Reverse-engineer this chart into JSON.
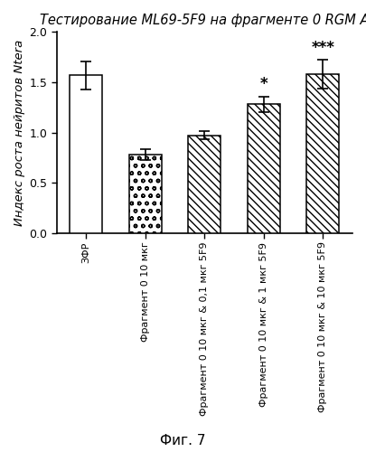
{
  "title": "Тестирование ML69-5F9 на фрагменте 0 RGM A",
  "ylabel": "Индекс роста нейритов Ntera",
  "fig_label": "Фиг. 7",
  "categories": [
    "ЗФР",
    "Фрагмент 0 10 мкг",
    "Фрагмент 0 10 мкг & 0,1 мкг 5F9",
    "Фрагмент 0 10 мкг & 1 мкг 5F9",
    "Фрагмент 0 10 мкг & 10 мкг 5F9"
  ],
  "values": [
    1.57,
    0.78,
    0.97,
    1.28,
    1.58
  ],
  "errors": [
    0.14,
    0.05,
    0.04,
    0.08,
    0.14
  ],
  "significance": [
    "",
    "",
    "",
    "*",
    "***"
  ],
  "hatch_list": [
    "",
    "oo",
    "\\\\\\\\",
    "\\\\\\\\",
    "\\\\\\\\"
  ],
  "ylim": [
    0,
    2.0
  ],
  "yticks": [
    0.0,
    0.5,
    1.0,
    1.5,
    2.0
  ],
  "title_fontsize": 10.5,
  "ylabel_fontsize": 9.5,
  "xtick_fontsize": 8.0,
  "ytick_fontsize": 9,
  "sig_fontsize": 12,
  "caption_fontsize": 11,
  "bar_width": 0.55,
  "background_color": "white"
}
